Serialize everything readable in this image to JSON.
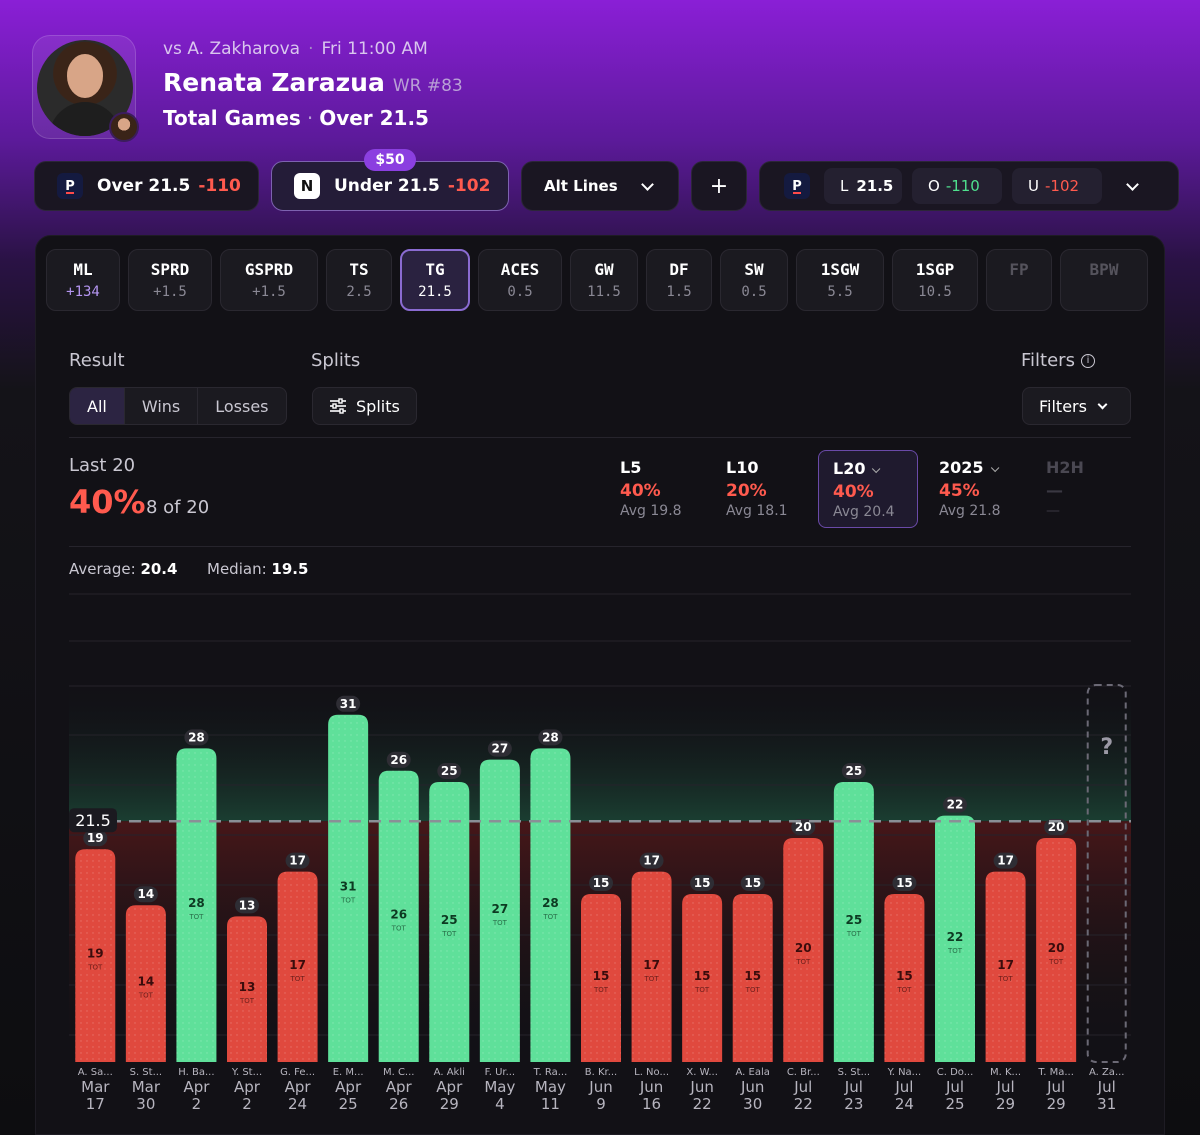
{
  "header": {
    "opponent": "vs A. Zakharova",
    "time": "Fri 11:00 AM",
    "player": "Renata Zarazua",
    "rank": "WR #83",
    "market": "Total Games",
    "line": "Over 21.5"
  },
  "bets": {
    "over": {
      "label": "Over 21.5",
      "odds": "-110",
      "book_icon": "prizepicks-logo"
    },
    "under": {
      "label": "Under 21.5",
      "odds": "-102",
      "book_icon": "n-logo",
      "stake": "$50"
    },
    "alt_lines": "Alt Lines",
    "add": "+",
    "book": {
      "line_label": "L",
      "line": "21.5",
      "over_label": "O",
      "over_odds": "-110",
      "under_label": "U",
      "under_odds": "-102"
    }
  },
  "tabs": [
    {
      "label": "ML",
      "value": "+134",
      "style": "purple"
    },
    {
      "label": "SPRD",
      "value": "+1.5"
    },
    {
      "label": "GSPRD",
      "value": "+1.5"
    },
    {
      "label": "TS",
      "value": "2.5"
    },
    {
      "label": "TG",
      "value": "21.5",
      "active": true
    },
    {
      "label": "ACES",
      "value": "0.5"
    },
    {
      "label": "GW",
      "value": "11.5"
    },
    {
      "label": "DF",
      "value": "1.5"
    },
    {
      "label": "SW",
      "value": "0.5"
    },
    {
      "label": "1SGW",
      "value": "5.5"
    },
    {
      "label": "1SGP",
      "value": "10.5"
    },
    {
      "label": "FP",
      "value": "",
      "dim": true
    },
    {
      "label": "BPW",
      "value": "",
      "dim": true
    }
  ],
  "filters": {
    "result_label": "Result",
    "result_options": [
      "All",
      "Wins",
      "Losses"
    ],
    "splits_label": "Splits",
    "splits_button": "Splits",
    "filters_label": "Filters",
    "filters_button": "Filters"
  },
  "summary": {
    "period": "Last 20",
    "pct": "40%",
    "count": "8 of 20",
    "ranges": [
      {
        "label": "L5",
        "pct": "40%",
        "avg": "Avg 19.8"
      },
      {
        "label": "L10",
        "pct": "20%",
        "avg": "Avg 18.1"
      },
      {
        "label": "L20",
        "pct": "40%",
        "avg": "Avg 20.4",
        "active": true
      },
      {
        "label": "2025",
        "pct": "45%",
        "avg": "Avg 21.8",
        "dropdown": true
      },
      {
        "label": "H2H",
        "pct": "—",
        "avg": "—",
        "dim": true
      }
    ],
    "average_label": "Average:",
    "average": "20.4",
    "median_label": "Median:",
    "median": "19.5"
  },
  "chart_data": {
    "type": "bar",
    "line": 21.5,
    "line_label": "21.5",
    "unit_label": "TOT",
    "ylim": [
      0,
      38
    ],
    "colors": {
      "over": "#5fe09a",
      "under": "#e0493e"
    },
    "bars": [
      {
        "opp": "A. Sa...",
        "month": "Mar",
        "day": "17",
        "value": 19
      },
      {
        "opp": "S. St...",
        "month": "Mar",
        "day": "30",
        "value": 14
      },
      {
        "opp": "H. Ba...",
        "month": "Apr",
        "day": "2",
        "value": 28
      },
      {
        "opp": "Y. St...",
        "month": "Apr",
        "day": "2",
        "value": 13
      },
      {
        "opp": "G. Fe...",
        "month": "Apr",
        "day": "24",
        "value": 17
      },
      {
        "opp": "E. M...",
        "month": "Apr",
        "day": "25",
        "value": 31
      },
      {
        "opp": "M. C...",
        "month": "Apr",
        "day": "26",
        "value": 26
      },
      {
        "opp": "A. Akli",
        "month": "Apr",
        "day": "29",
        "value": 25
      },
      {
        "opp": "F. Ur...",
        "month": "May",
        "day": "4",
        "value": 27
      },
      {
        "opp": "T. Ra...",
        "month": "May",
        "day": "11",
        "value": 28
      },
      {
        "opp": "B. Kr...",
        "month": "Jun",
        "day": "9",
        "value": 15
      },
      {
        "opp": "L. No...",
        "month": "Jun",
        "day": "16",
        "value": 17
      },
      {
        "opp": "X. W...",
        "month": "Jun",
        "day": "22",
        "value": 15
      },
      {
        "opp": "A. Eala",
        "month": "Jun",
        "day": "30",
        "value": 15
      },
      {
        "opp": "C. Br...",
        "month": "Jul",
        "day": "22",
        "value": 20
      },
      {
        "opp": "S. St...",
        "month": "Jul",
        "day": "23",
        "value": 25
      },
      {
        "opp": "Y. Na...",
        "month": "Jul",
        "day": "24",
        "value": 15
      },
      {
        "opp": "C. Do...",
        "month": "Jul",
        "day": "25",
        "value": 22
      },
      {
        "opp": "M. K...",
        "month": "Jul",
        "day": "29",
        "value": 17
      },
      {
        "opp": "T. Ma...",
        "month": "Jul",
        "day": "29",
        "value": 20
      }
    ],
    "upcoming": {
      "opp": "A. Za...",
      "month": "Jul",
      "day": "31",
      "label": "?"
    }
  }
}
